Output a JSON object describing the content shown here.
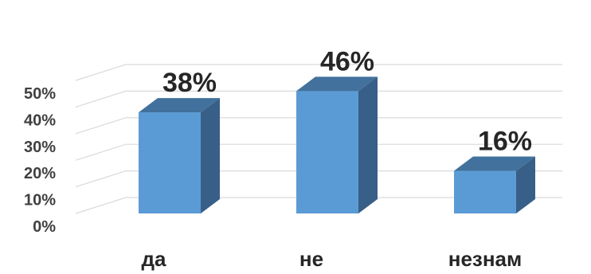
{
  "chart_data": {
    "type": "bar",
    "style": "3d-column",
    "categories": [
      "да",
      "не",
      "незнам"
    ],
    "values": [
      38,
      46,
      16
    ],
    "data_labels": [
      "38%",
      "46%",
      "16%"
    ],
    "y_ticks": [
      "0%",
      "10%",
      "20%",
      "30%",
      "40%",
      "50%"
    ],
    "ylim": [
      0,
      50
    ],
    "grid": true,
    "title": "",
    "xlabel": "",
    "ylabel": "",
    "colors": {
      "bar_front": "#5b9bd5",
      "bar_top": "#41719c",
      "bar_side": "#385f87",
      "gridline": "#d9d9d9"
    }
  }
}
